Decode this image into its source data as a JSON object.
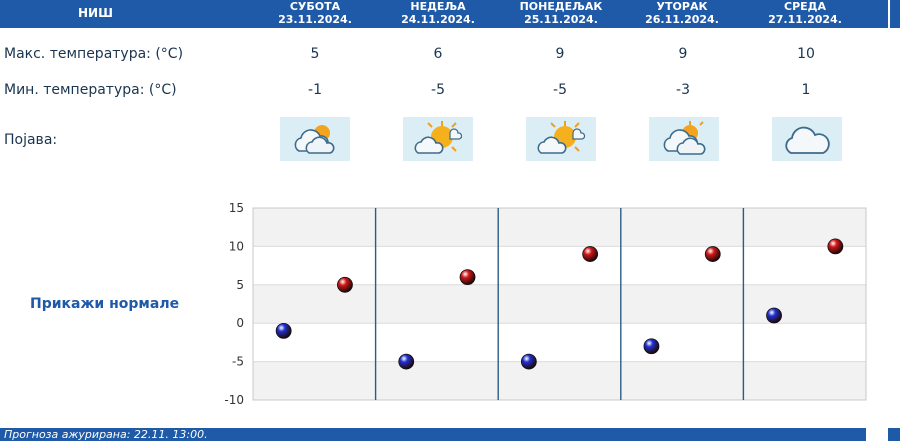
{
  "header": {
    "city": "НИШ",
    "days": [
      {
        "name": "СУБОТА",
        "date": "23.11.2024."
      },
      {
        "name": "НЕДЕЉА",
        "date": "24.11.2024."
      },
      {
        "name": "ПОНЕДЕЉАК",
        "date": "25.11.2024."
      },
      {
        "name": "УТОРАК",
        "date": "26.11.2024."
      },
      {
        "name": "СРЕДА",
        "date": "27.11.2024."
      }
    ]
  },
  "rows": {
    "max_label": "Макс. температура: (°C)",
    "min_label": "Мин. температура: (°C)",
    "phenomenon_label": "Појава:",
    "max": [
      "5",
      "6",
      "9",
      "9",
      "10"
    ],
    "min": [
      "-1",
      "-5",
      "-5",
      "-3",
      "1"
    ],
    "icons": [
      "partly-cloudy-icon",
      "sun-behind-cloud-icon",
      "sun-behind-cloud-icon",
      "partly-cloudy-icon",
      "cloud-icon"
    ]
  },
  "normals_link": "Прикажи нормале",
  "footer": "Прогноза ажурирана:  22.11. 13:00.",
  "chart_data": {
    "type": "scatter",
    "categories": [
      "23.11.2024.",
      "24.11.2024.",
      "25.11.2024.",
      "26.11.2024.",
      "27.11.2024."
    ],
    "series": [
      {
        "values": [
          -1,
          -5,
          -5,
          -3,
          1
        ],
        "color": "#1f2fd0"
      },
      {
        "values": [
          5,
          6,
          9,
          9,
          10
        ],
        "color": "#d01818"
      }
    ],
    "yticks": [
      15,
      10,
      5,
      0,
      -5,
      -10
    ],
    "ylim": [
      -10,
      15
    ],
    "grid": true
  }
}
